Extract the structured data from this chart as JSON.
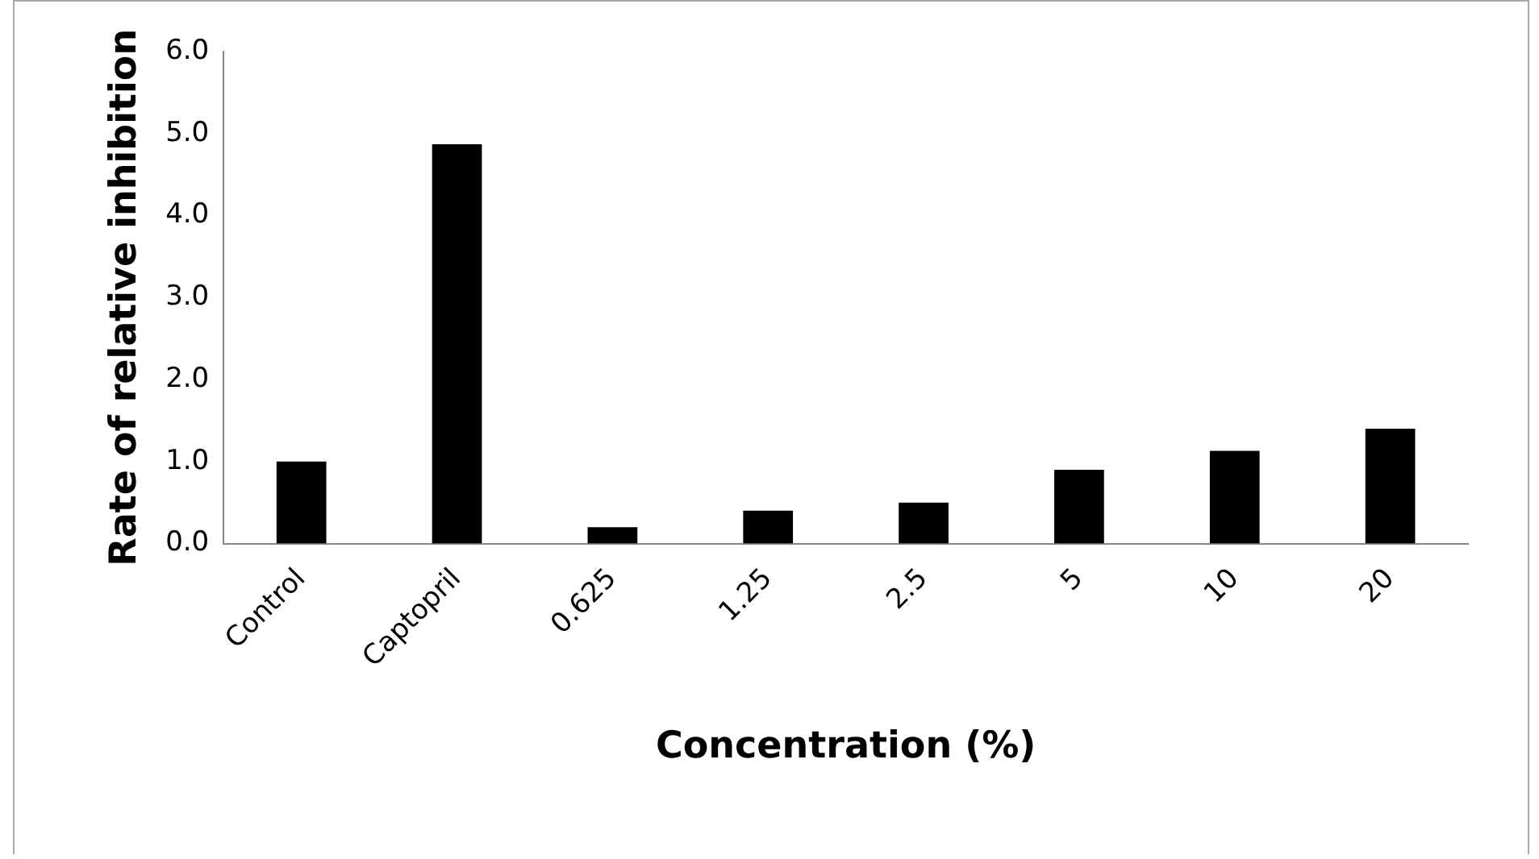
{
  "chart_data": {
    "type": "bar",
    "xlabel": "Concentration (%)",
    "ylabel": "Rate of relative inhibition",
    "categories": [
      "Control",
      "Captopril",
      "0.625",
      "1.25",
      "2.5",
      "5",
      "10",
      "20"
    ],
    "values": [
      1.0,
      4.87,
      0.2,
      0.4,
      0.5,
      0.9,
      1.13,
      1.4
    ],
    "color": "#000000",
    "ylim": [
      0,
      6
    ],
    "yticks": [
      {
        "value": 0,
        "label": "0.0"
      },
      {
        "value": 1,
        "label": "1.0"
      },
      {
        "value": 2,
        "label": "2.0"
      },
      {
        "value": 3,
        "label": "3.0"
      },
      {
        "value": 4,
        "label": "4.0"
      },
      {
        "value": 5,
        "label": "5.0"
      },
      {
        "value": 6,
        "label": "6.0"
      }
    ],
    "grid": false,
    "legend": false
  }
}
